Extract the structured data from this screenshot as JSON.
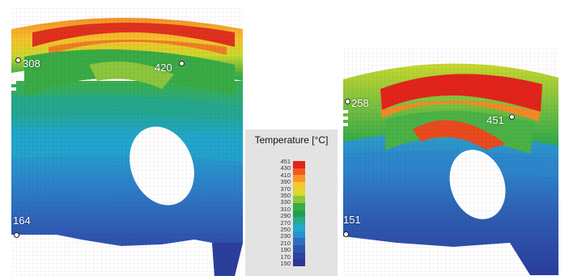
{
  "legend": {
    "title": "Temperature [°C]",
    "ticks": [
      "451",
      "430",
      "410",
      "390",
      "370",
      "350",
      "330",
      "310",
      "290",
      "270",
      "250",
      "230",
      "210",
      "190",
      "170",
      "150"
    ],
    "colors": [
      "#e3241c",
      "#ef5a20",
      "#f7942a",
      "#f9c62b",
      "#d6db2a",
      "#8cc63e",
      "#3aab45",
      "#1fa14a",
      "#25a98f",
      "#21a9c8",
      "#2a90cf",
      "#2f6fbe",
      "#2f55ae",
      "#2c439f",
      "#2b3794"
    ]
  },
  "pistons": [
    {
      "probes": [
        {
          "label": "308"
        },
        {
          "label": "420"
        },
        {
          "label": "164"
        }
      ]
    },
    {
      "probes": [
        {
          "label": "258"
        },
        {
          "label": "451"
        },
        {
          "label": "151"
        }
      ]
    }
  ]
}
